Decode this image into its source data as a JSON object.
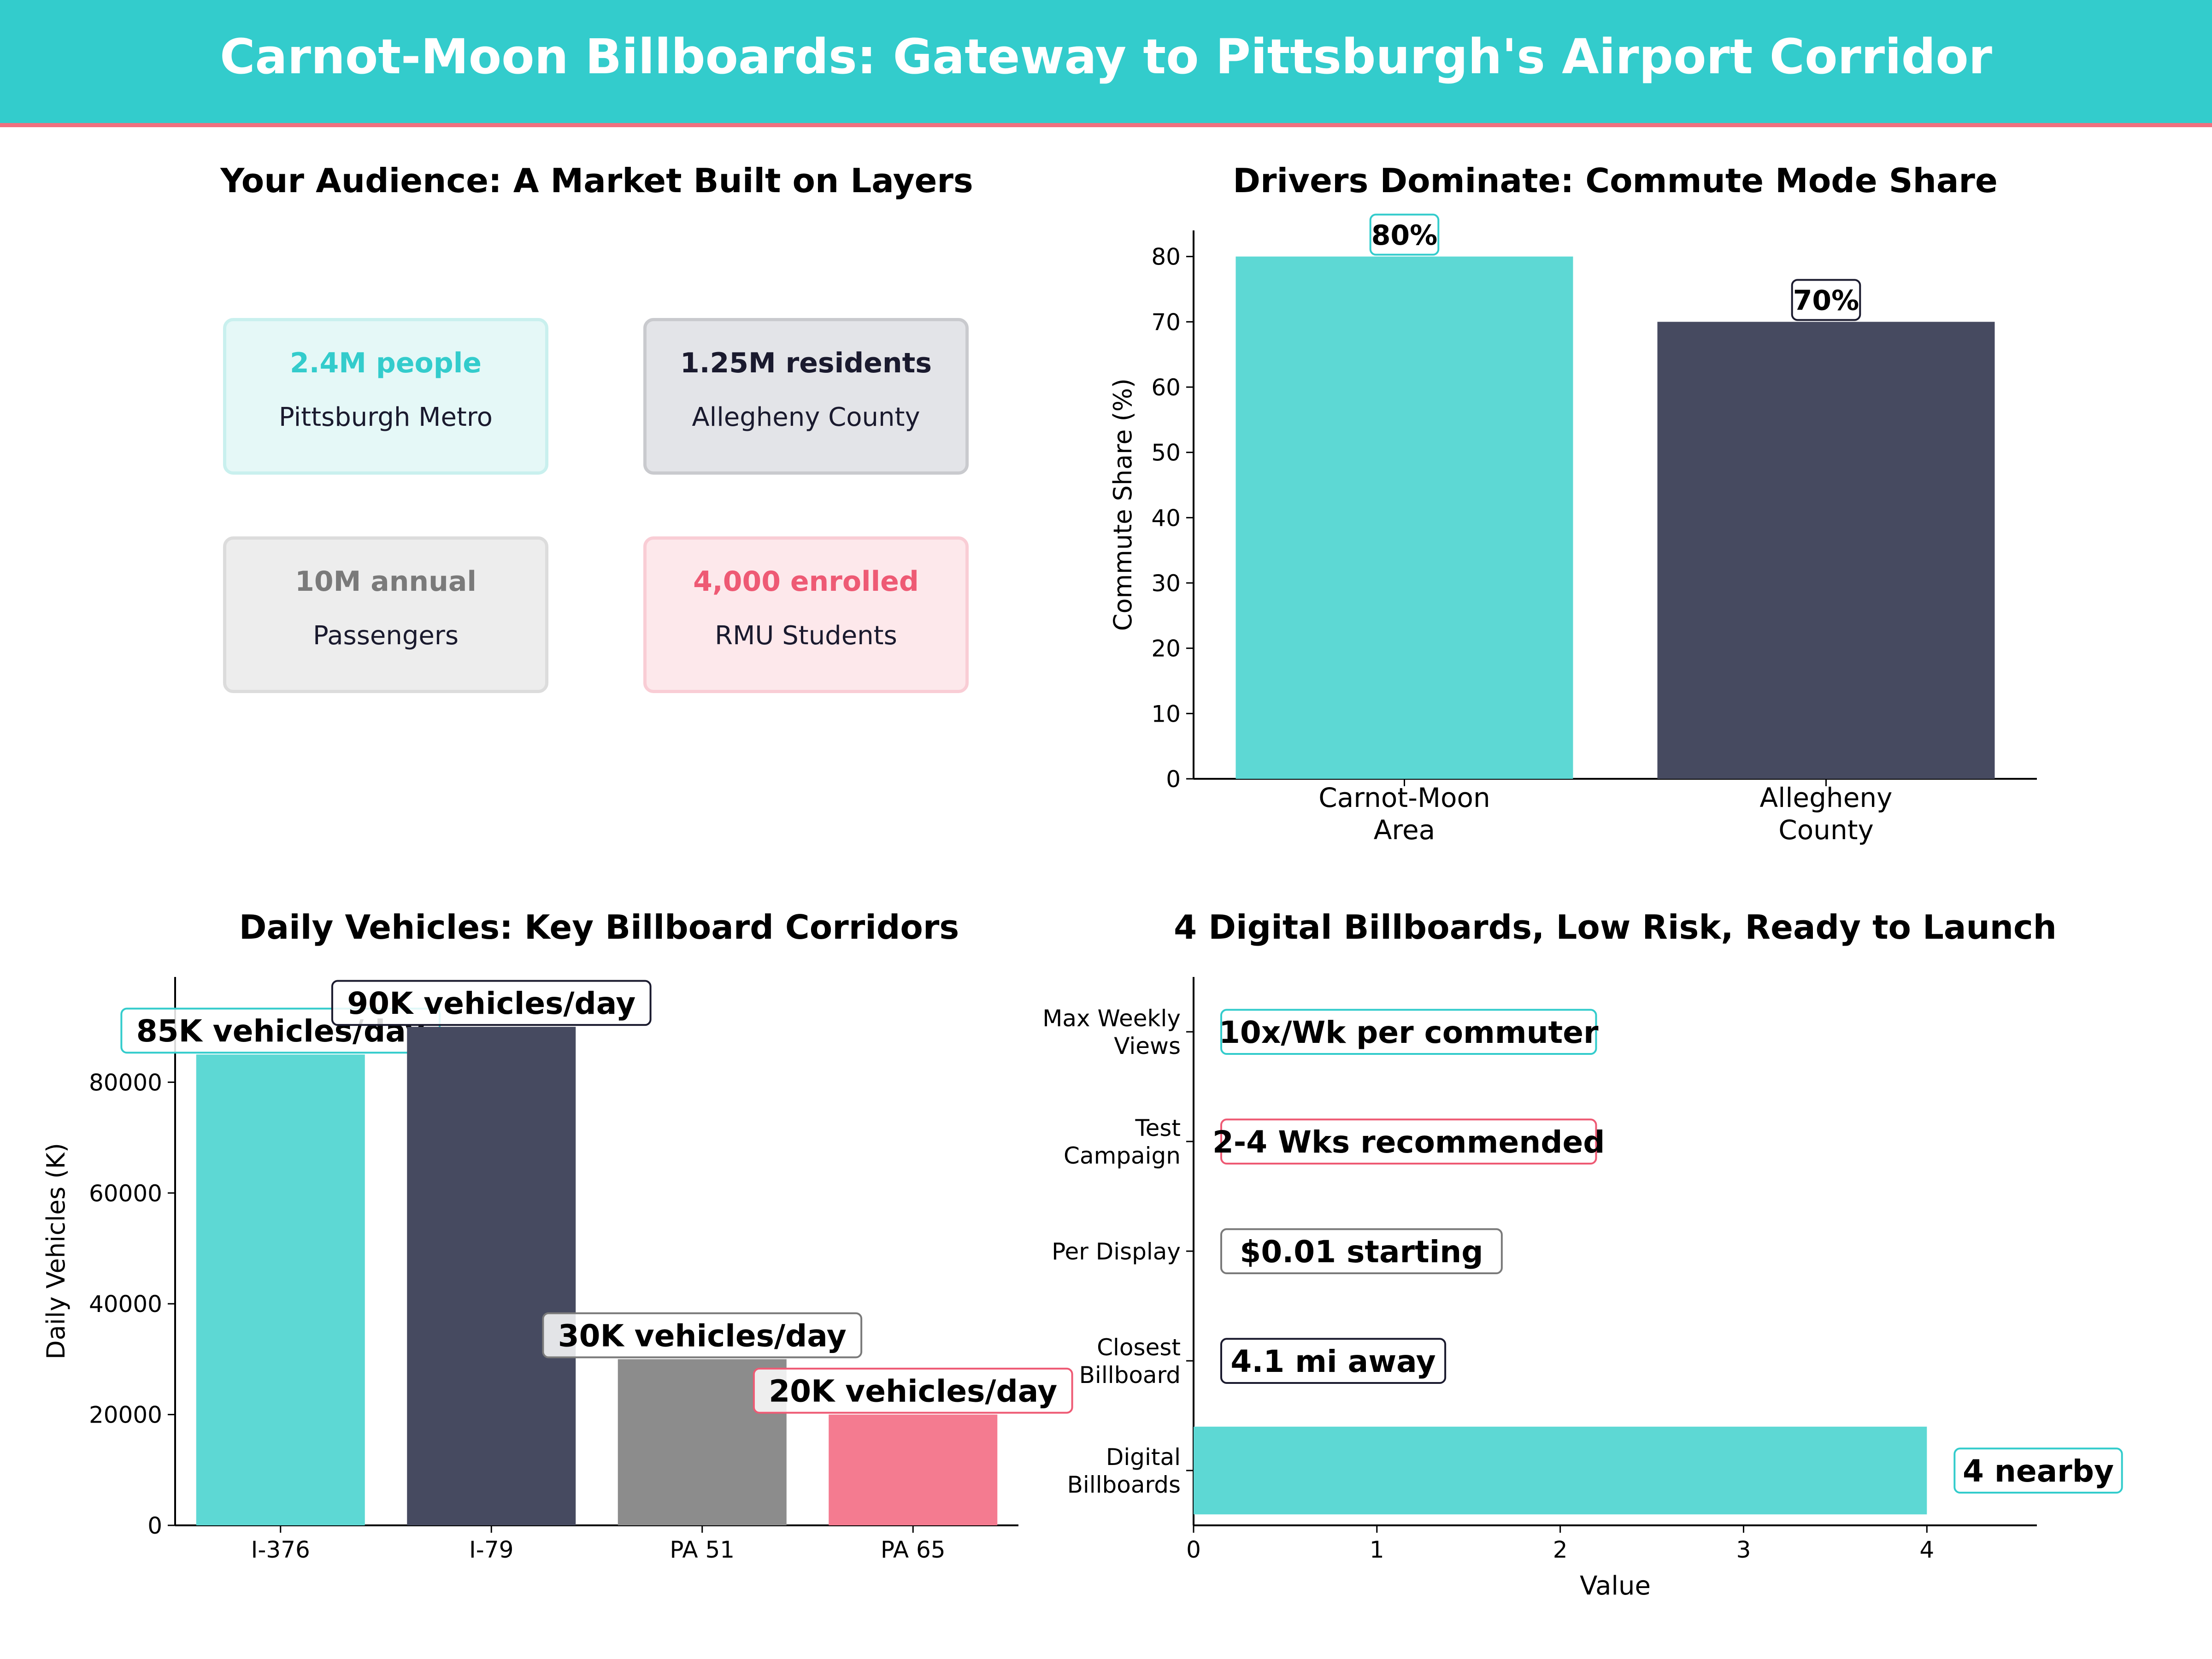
{
  "header": {
    "title": "Carnot-Moon Billboards: Gateway to Pittsburgh's Airport Corridor"
  },
  "colors": {
    "teal": "#5dd8d4",
    "navy": "#464a60",
    "gray": "#8c8c8c",
    "pink": "#f47b90",
    "banner": "#33cccc",
    "accent_line": "#f0707f"
  },
  "audience": {
    "title": "Your Audience: A Market Built on Layers",
    "cards": [
      {
        "value": "2.4M people",
        "label": "Pittsburgh Metro",
        "value_color": "#33cccc",
        "bg": "#e5f8f7",
        "border": "#c9f0ee"
      },
      {
        "value": "1.25M residents",
        "label": "Allegheny County",
        "value_color": "#1a1a2e",
        "bg": "#e3e4e8",
        "border": "#c9cace"
      },
      {
        "value": "10M annual",
        "label": "Passengers",
        "value_color": "#7a7a7a",
        "bg": "#ededed",
        "border": "#dcdcdc"
      },
      {
        "value": "4,000 enrolled",
        "label": "RMU Students",
        "value_color": "#ee5a74",
        "bg": "#fde8eb",
        "border": "#f9cdd5"
      }
    ]
  },
  "chart_data": [
    {
      "type": "bar",
      "title": "Drivers Dominate: Commute Mode Share",
      "xlabel": "",
      "ylabel": "Commute Share (%)",
      "categories": [
        "Carnot-Moon\nArea",
        "Allegheny\nCounty"
      ],
      "values": [
        80,
        70
      ],
      "data_labels": [
        "80%",
        "70%"
      ],
      "colors": [
        "#5dd8d4",
        "#464a60"
      ],
      "label_borders": [
        "#33cccc",
        "#1a1a2e"
      ],
      "ylim": [
        0,
        84
      ],
      "yticks": [
        0,
        10,
        20,
        30,
        40,
        50,
        60,
        70,
        80
      ],
      "grid": false
    },
    {
      "type": "bar",
      "title": "Daily Vehicles: Key Billboard Corridors",
      "xlabel": "",
      "ylabel": "Daily Vehicles (K)",
      "categories": [
        "I-376",
        "I-79",
        "PA 51",
        "PA 65"
      ],
      "values": [
        85000,
        90000,
        30000,
        20000
      ],
      "data_labels": [
        "85K vehicles/day",
        "90K vehicles/day",
        "30K vehicles/day",
        "20K vehicles/day"
      ],
      "colors": [
        "#5dd8d4",
        "#464a60",
        "#8c8c8c",
        "#f47b90"
      ],
      "label_borders": [
        "#33cccc",
        "#1a1a2e",
        "#7a7a7a",
        "#ee5a74"
      ],
      "ylim": [
        0,
        99000
      ],
      "yticks": [
        0,
        20000,
        40000,
        60000,
        80000
      ],
      "grid": false
    },
    {
      "type": "bar",
      "orientation": "horizontal",
      "title": "4 Digital Billboards, Low Risk, Ready to Launch",
      "xlabel": "Value",
      "ylabel": "",
      "categories": [
        "Digital\nBillboards",
        "Closest\nBillboard",
        "Per Display",
        "Test\nCampaign",
        "Max Weekly\nViews"
      ],
      "values": [
        4,
        0,
        0,
        0,
        0
      ],
      "data_labels": [
        "4 nearby",
        "4.1 mi away",
        "$0.01 starting",
        "2-4 Wks recommended",
        "10x/Wk per commuter"
      ],
      "colors": [
        "#5dd8d4",
        "#464a60",
        "#8c8c8c",
        "#f47b90",
        "#5dd8d4"
      ],
      "label_borders": [
        "#33cccc",
        "#1a1a2e",
        "#7a7a7a",
        "#ee5a74",
        "#33cccc"
      ],
      "xlim": [
        0,
        4.6
      ],
      "xticks": [
        0,
        1,
        2,
        3,
        4
      ],
      "grid": false
    }
  ]
}
